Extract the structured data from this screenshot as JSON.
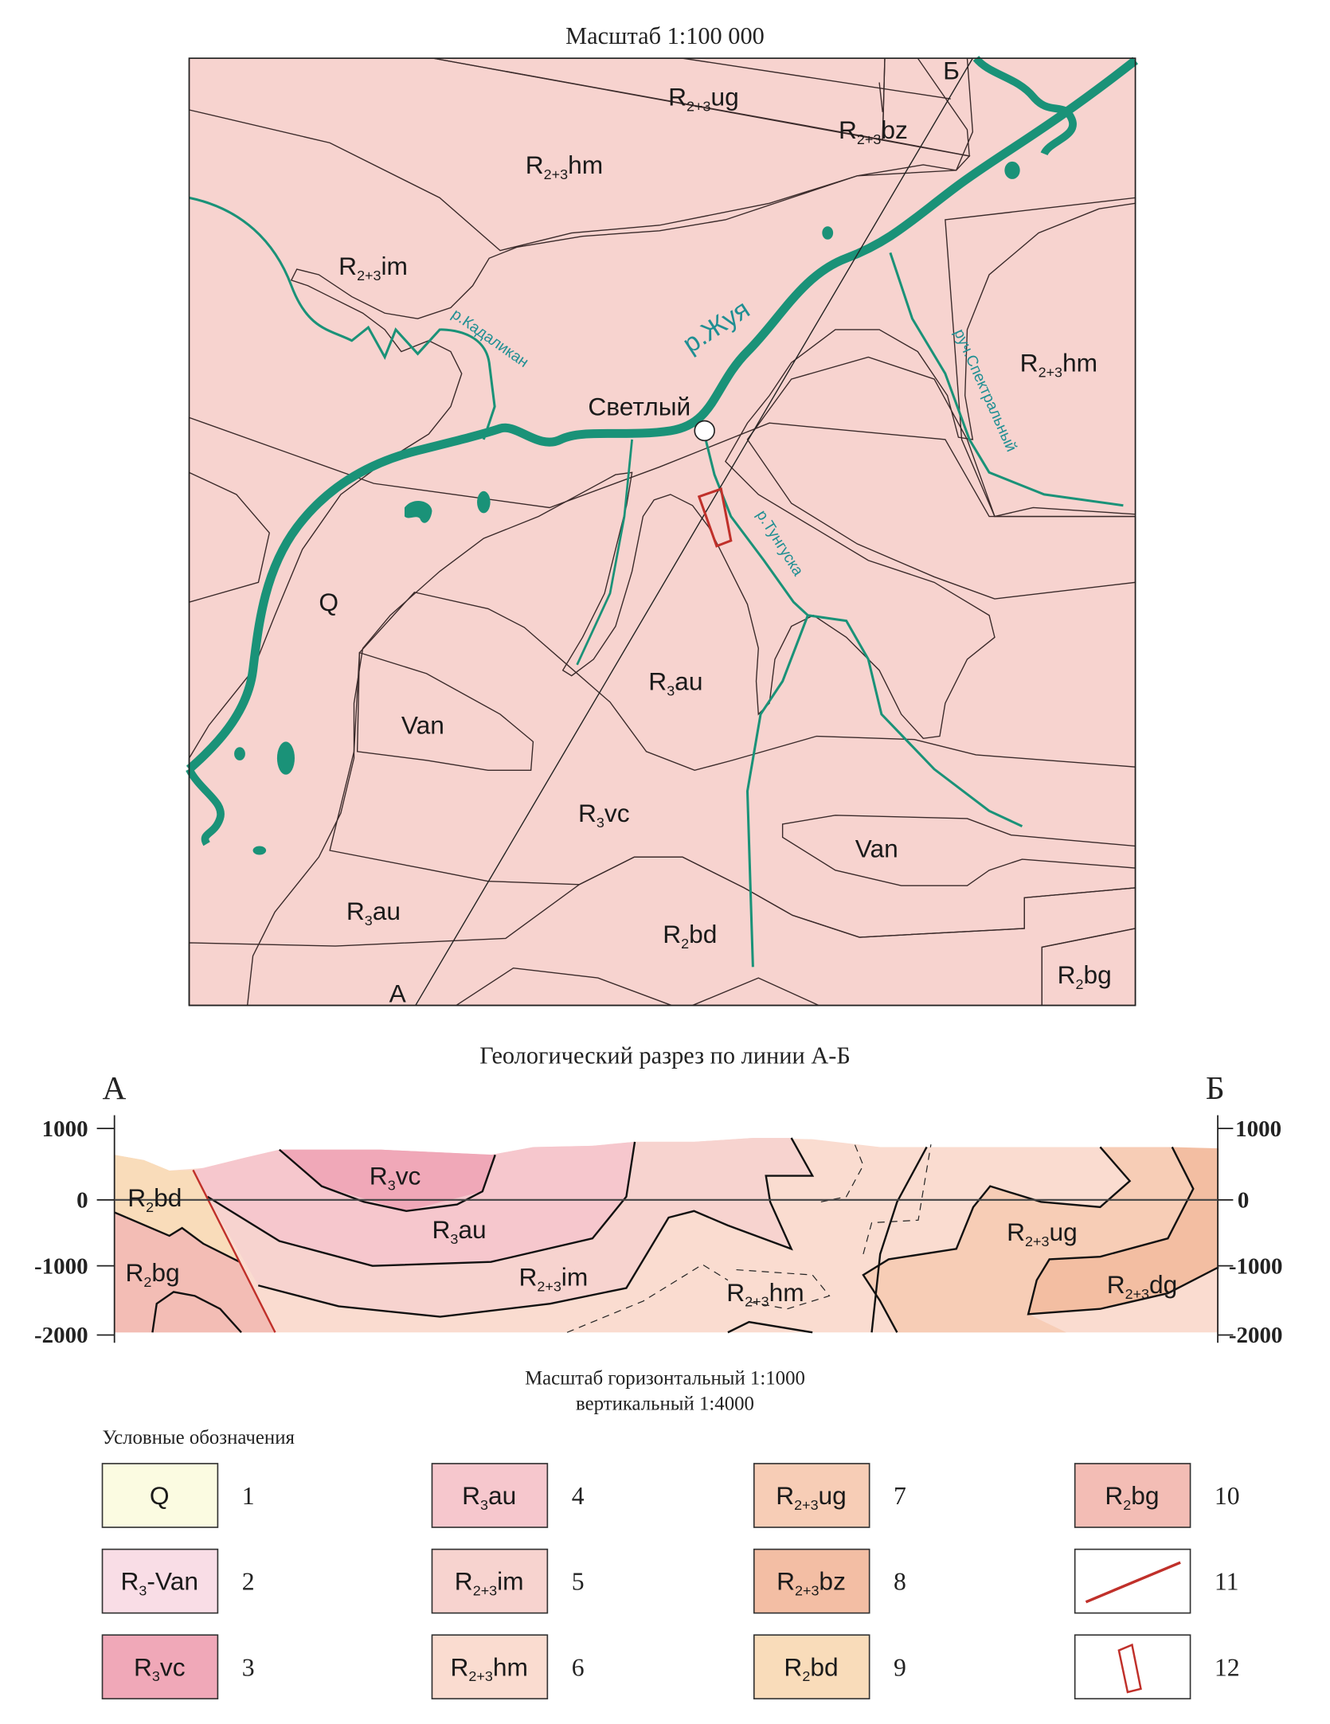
{
  "colors": {
    "Q": "#fbfbe1",
    "Van": "#f9dde6",
    "vc": "#f0a8b8",
    "au": "#f6c7cd",
    "im": "#f7d3cf",
    "hm": "#fadcd0",
    "ug": "#f7cdb6",
    "bz": "#f3bea4",
    "bd": "#f9dcba",
    "bg": "#f3bdb5",
    "dg": "#f3bea2",
    "river": "#1a9278",
    "fault": "#c0302a"
  },
  "map": {
    "title": "Масштаб 1:100 000",
    "endpoint_a": "А",
    "endpoint_b": "Б",
    "settlement": "Светлый",
    "rivers": {
      "zhuya": "р.Жуя",
      "kadalikan": "р.Кадаликан",
      "tunguska": "р.Тунгуска",
      "spektralny": "руч.Спектральный"
    },
    "formations": {
      "ug": {
        "base": "R",
        "sub": "2+3",
        "suffix": "ug"
      },
      "bz": {
        "base": "R",
        "sub": "2+3",
        "suffix": "bz"
      },
      "hm_top": {
        "base": "R",
        "sub": "2+3",
        "suffix": "hm"
      },
      "im": {
        "base": "R",
        "sub": "2+3",
        "suffix": "im"
      },
      "hm_right": {
        "base": "R",
        "sub": "2+3",
        "suffix": "hm"
      },
      "q": "Q",
      "van_left": "Van",
      "au_mid": {
        "base": "R",
        "sub": "3",
        "suffix": "au"
      },
      "vc": {
        "base": "R",
        "sub": "3",
        "suffix": "vc"
      },
      "van_right": "Van",
      "au_bottom": {
        "base": "R",
        "sub": "3",
        "suffix": "au"
      },
      "bd": {
        "base": "R",
        "sub": "2",
        "suffix": "bd"
      },
      "bg": {
        "base": "R",
        "sub": "2",
        "suffix": "bg"
      }
    }
  },
  "section": {
    "title": "Геологический разрез по линии А-Б",
    "endpoint_a": "А",
    "endpoint_b": "Б",
    "axis_ticks": [
      "1000",
      "0",
      "-1000",
      "-2000"
    ],
    "scale_horizontal": "Масштаб горизонтальный 1:1000",
    "scale_vertical": "вертикальный 1:4000",
    "formations": {
      "bd": {
        "base": "R",
        "sub": "2",
        "suffix": "bd"
      },
      "bg": {
        "base": "R",
        "sub": "2",
        "suffix": "bg"
      },
      "vc": {
        "base": "R",
        "sub": "3",
        "suffix": "vc"
      },
      "au": {
        "base": "R",
        "sub": "3",
        "suffix": "au"
      },
      "im": {
        "base": "R",
        "sub": "2+3",
        "suffix": "im"
      },
      "hm": {
        "base": "R",
        "sub": "2+3",
        "suffix": "hm"
      },
      "ug": {
        "base": "R",
        "sub": "2+3",
        "suffix": "ug"
      },
      "dg": {
        "base": "R",
        "sub": "2+3",
        "suffix": "dg"
      }
    }
  },
  "legend": {
    "title": "Условные обозначения",
    "items": [
      {
        "num": "1",
        "base": "Q",
        "sub": "",
        "suffix": ""
      },
      {
        "num": "2",
        "base": "R",
        "sub": "3",
        "suffix": "-Van"
      },
      {
        "num": "3",
        "base": "R",
        "sub": "3",
        "suffix": "vc"
      },
      {
        "num": "4",
        "base": "R",
        "sub": "3",
        "suffix": "au"
      },
      {
        "num": "5",
        "base": "R",
        "sub": "2+3",
        "suffix": "im"
      },
      {
        "num": "6",
        "base": "R",
        "sub": "2+3",
        "suffix": "hm"
      },
      {
        "num": "7",
        "base": "R",
        "sub": "2+3",
        "suffix": "ug"
      },
      {
        "num": "8",
        "base": "R",
        "sub": "2+3",
        "suffix": "bz"
      },
      {
        "num": "9",
        "base": "R",
        "sub": "2",
        "suffix": "bd"
      },
      {
        "num": "10",
        "base": "R",
        "sub": "2",
        "suffix": "bg"
      },
      {
        "num": "11",
        "symbol": "fault-line"
      },
      {
        "num": "12",
        "symbol": "study-area-outline"
      }
    ]
  }
}
